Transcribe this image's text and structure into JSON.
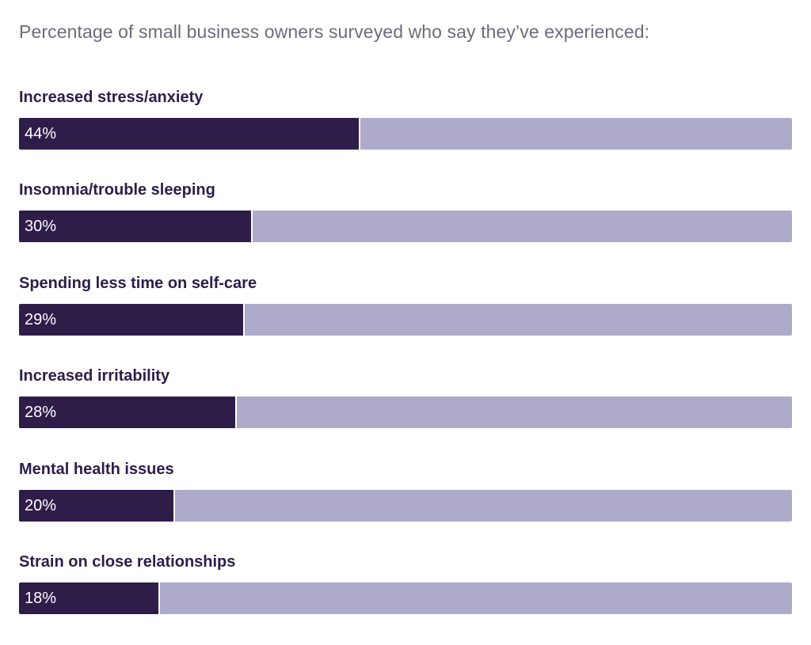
{
  "chart_data": {
    "type": "bar",
    "orientation": "horizontal",
    "title": "Percentage of small business owners surveyed who say they’ve experienced:",
    "categories": [
      "Increased stress/anxiety",
      "Insomnia/trouble sleeping",
      "Spending less time on self-care",
      "Increased irritability",
      "Mental health issues",
      "Strain on close relationships"
    ],
    "values": [
      44,
      30,
      29,
      28,
      20,
      18
    ],
    "value_labels": [
      "44%",
      "30%",
      "29%",
      "28%",
      "20%",
      "18%"
    ],
    "xlim": [
      0,
      100
    ],
    "grid": false,
    "legend": "none",
    "colors": {
      "fill": "#2e1d49",
      "track": "#aeaaca",
      "label": "#2e1d49",
      "title": "#6f6a7b",
      "value_text": "#ffffff"
    }
  }
}
